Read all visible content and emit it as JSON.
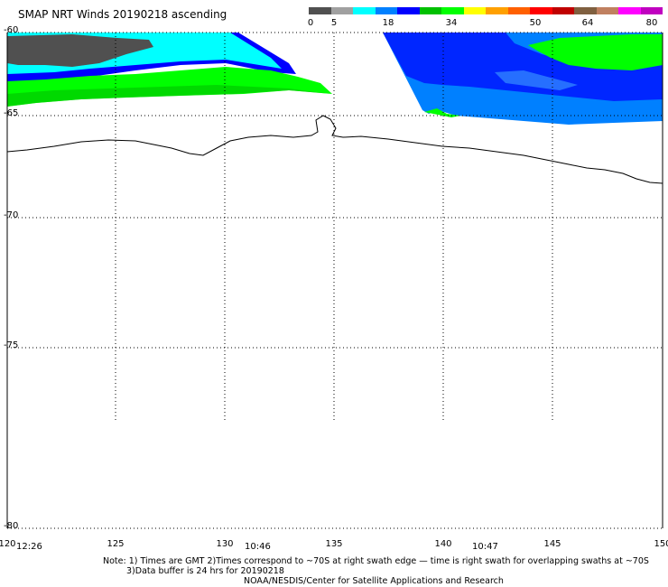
{
  "title": "SMAP NRT Winds 20190218 ascending",
  "colorbar": {
    "labels": [
      "0",
      "5",
      "18",
      "34",
      "50",
      "64",
      "80"
    ],
    "colors": [
      "#505050",
      "#a0a0a0",
      "#00ffff",
      "#0080ff",
      "#0000ff",
      "#00c000",
      "#00ff00",
      "#ffff00",
      "#ffa000",
      "#ff6000",
      "#ff0000",
      "#c00000",
      "#806040",
      "#c08060",
      "#ff00ff",
      "#c000c0"
    ]
  },
  "lat_labels": [
    "-60",
    "-65",
    "-70",
    "-75",
    "-80"
  ],
  "lon_labels": [
    "120",
    "125",
    "130",
    "135",
    "140",
    "145",
    "150"
  ],
  "time_labels": [
    "12:26",
    "10:46",
    "10:47"
  ],
  "notes": {
    "line1": "Note: 1) Times are GMT 2)Times correspond to ~70S at right swath edge — time is right swath for overlapping swaths at ~70S",
    "line2": "3)Data buffer is 24 hrs for 20190218",
    "line3": "NOAA/NESDIS/Center for Satellite Applications and Research"
  }
}
